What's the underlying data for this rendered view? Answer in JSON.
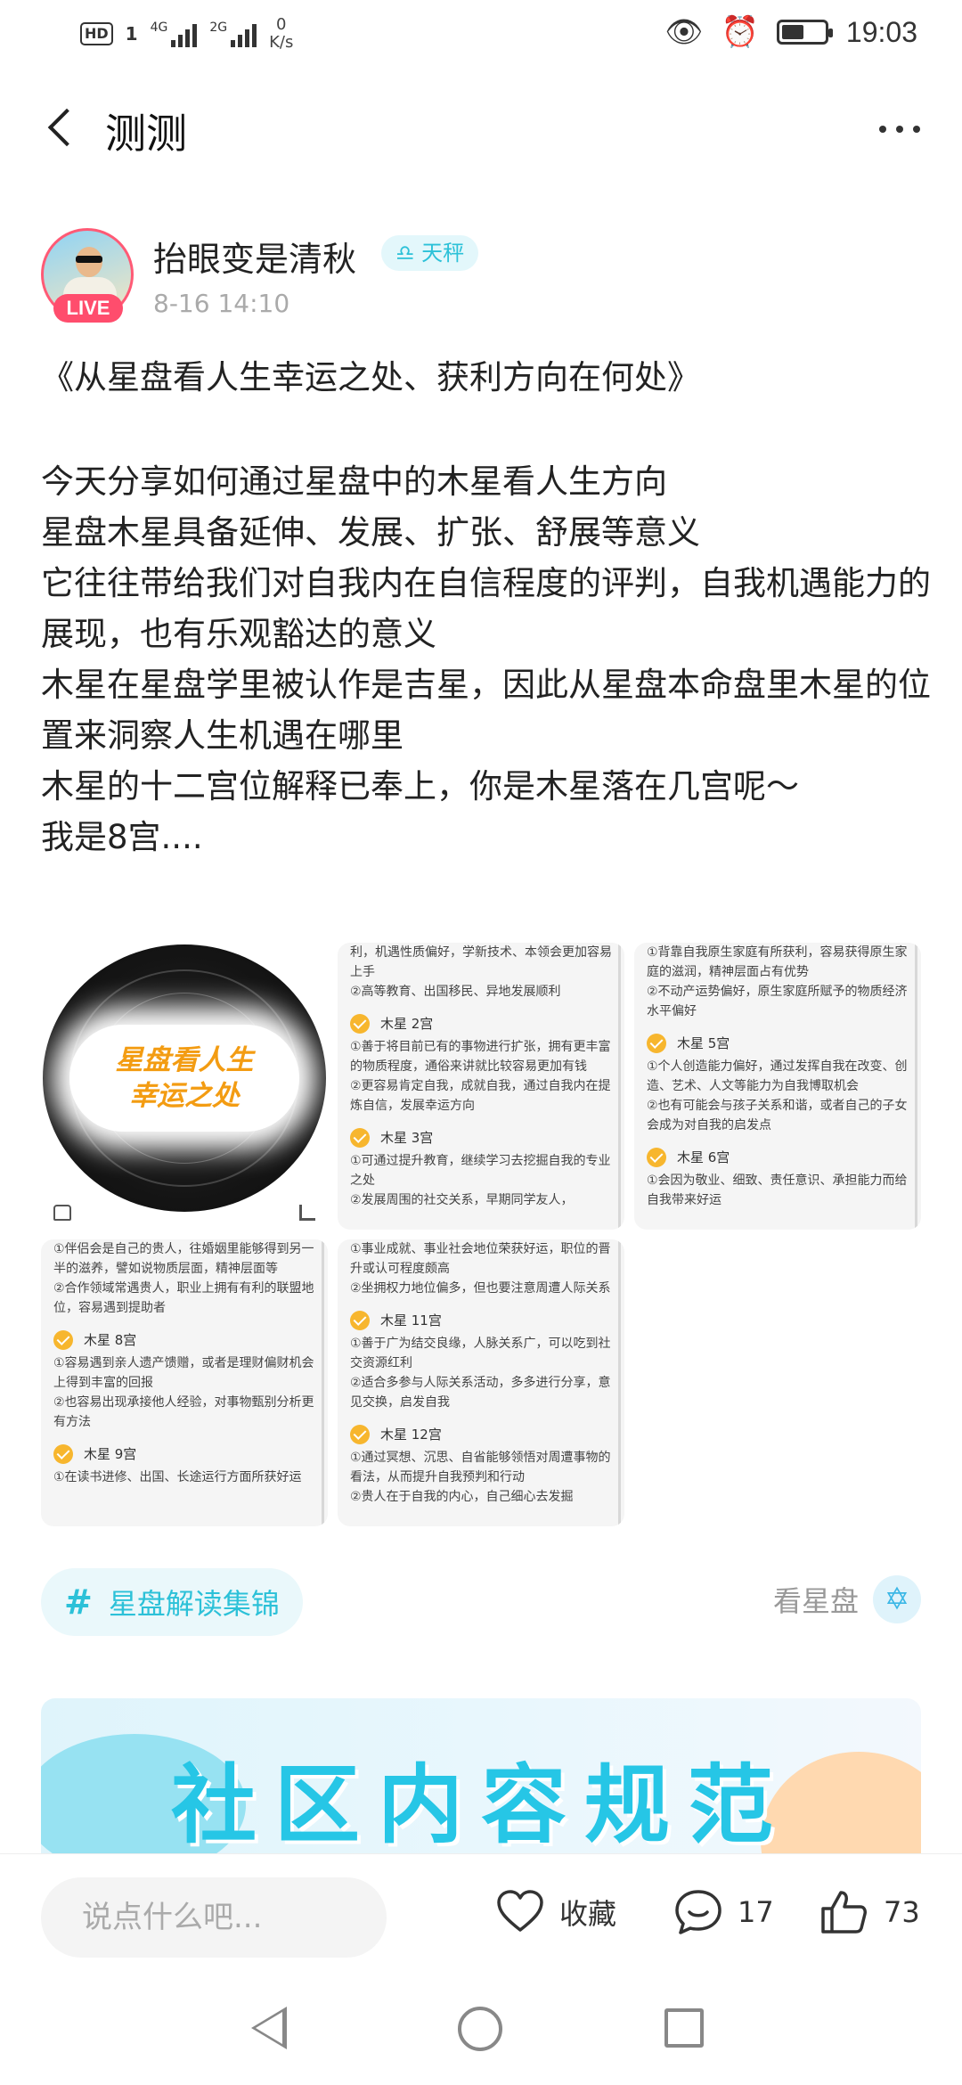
{
  "status_bar": {
    "hd": "HD",
    "sim": "1",
    "sig1": "4G",
    "sig2": "2G",
    "speed_value": "0",
    "speed_unit": "K/s",
    "time": "19:03"
  },
  "header": {
    "title": "测测"
  },
  "author": {
    "name": "抬眼变是清秋",
    "zodiac_tag": "♎ 天秤",
    "time": "8-16 14:10",
    "live_label": "LIVE"
  },
  "post": {
    "title": "《从星盘看人生幸运之处、获利方向在何处》",
    "lines": [
      "今天分享如何通过星盘中的木星看人生方向",
      "星盘木星具备延伸、发展、扩张、舒展等意义",
      "它往往带给我们对自我内在自信程度的评判，自我机遇能力的展现，也有乐观豁达的意义",
      "木星在星盘学里被认作是吉星，因此从星盘本命盘里木星的位置来洞察人生机遇在哪里",
      "木星的十二宫位解释已奉上，你是木星落在几宫呢～",
      "我是8宫...."
    ]
  },
  "images": {
    "chart_caption_1": "星盘看人生",
    "chart_caption_2": "幸运之处",
    "tile2": {
      "intro": "利，机遇性质偏好，学新技术、本领会更加容易上手\n②高等教育、出国移民、异地发展顺利",
      "s1": "木星 2宫",
      "s1_text": "①善于将目前已有的事物进行扩张，拥有更丰富的物质程度，通俗来讲就比较容易更加有钱\n②更容易肯定自我，成就自我，通过自我内在提炼自信，发展幸运方向",
      "s2": "木星 3宫",
      "s2_text": "①可通过提升教育，继续学习去挖掘自我的专业之处\n②发展周围的社交关系，早期同学友人，"
    },
    "tile3": {
      "intro": "①背靠自我原生家庭有所获利，容易获得原生家庭的滋润，精神层面占有优势\n②不动产运势偏好，原生家庭所赋予的物质经济水平偏好",
      "s1": "木星 5宫",
      "s1_text": "①个人创造能力偏好，通过发挥自我在改变、创造、艺术、人文等能力为自我博取机会\n②也有可能会与孩子关系和谐，或者自己的子女会成为对自我的启发点",
      "s2": "木星 6宫",
      "s2_text": "①会因为敬业、细致、责任意识、承担能力而给自我带来好运"
    },
    "tile4": {
      "intro": "①伴侣会是自己的贵人，往婚姻里能够得到另一半的滋养，譬如说物质层面，精神层面等\n②合作领域常遇贵人，职业上拥有有利的联盟地位，容易遇到提助者",
      "s1": "木星 8宫",
      "s1_text": "①容易遇到亲人遗产馈赠，或者是理财偏财机会上得到丰富的回报\n②也容易出现承接他人经验，对事物甄别分析更有方法",
      "s2": "木星 9宫",
      "s2_text": "①在读书进修、出国、长途运行方面所获好运"
    },
    "tile5": {
      "intro": "①事业成就、事业社会地位荣获好运，职位的晋升或认可程度颇高\n②坐拥权力地位偏多，但也要注意周遭人际关系",
      "s1": "木星 11宫",
      "s1_text": "①善于广为结交良缘，人脉关系广，可以吃到社交资源红利\n②适合多参与人际关系活动，多多进行分享，意见交换，启发自我",
      "s2": "木星 12宫",
      "s2_text": "①通过冥想、沉思、自省能够领悟对周遭事物的看法，从而提升自我预判和行动\n②贵人在于自我的内心，自己细心去发掘"
    }
  },
  "topic": {
    "hash": "#",
    "label": "星盘解读集锦"
  },
  "see_star": {
    "label": "看星盘",
    "icon": "star-of-david-icon"
  },
  "banner": {
    "title": "社区内容规范"
  },
  "bottom_bar": {
    "comment_placeholder": "说点什么吧...",
    "favorite_label": "收藏",
    "comment_count": "17",
    "like_count": "73"
  },
  "colors": {
    "accent": "#2cc1d8",
    "live": "#ff4d6d",
    "check": "#f7b62e"
  }
}
